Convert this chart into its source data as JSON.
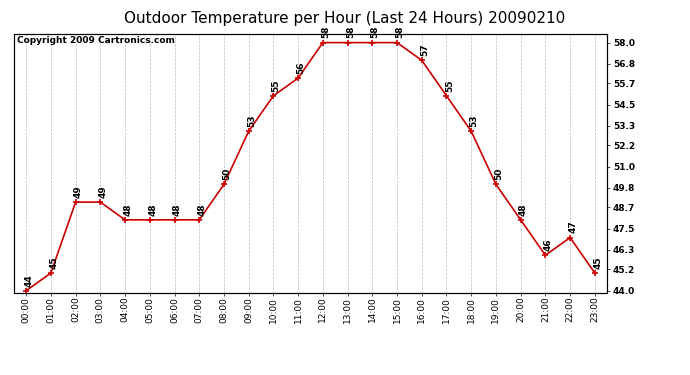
{
  "title": "Outdoor Temperature per Hour (Last 24 Hours) 20090210",
  "copyright": "Copyright 2009 Cartronics.com",
  "hours": [
    "00:00",
    "01:00",
    "02:00",
    "03:00",
    "04:00",
    "05:00",
    "06:00",
    "07:00",
    "08:00",
    "09:00",
    "10:00",
    "11:00",
    "12:00",
    "13:00",
    "14:00",
    "15:00",
    "16:00",
    "17:00",
    "18:00",
    "19:00",
    "20:00",
    "21:00",
    "22:00",
    "23:00"
  ],
  "temps": [
    44,
    45,
    49,
    49,
    48,
    48,
    48,
    48,
    50,
    53,
    55,
    56,
    58,
    58,
    58,
    58,
    57,
    55,
    53,
    50,
    48,
    46,
    47,
    45
  ],
  "ymin": 44.0,
  "ymax": 58.0,
  "yticks": [
    44.0,
    45.2,
    46.3,
    47.5,
    48.7,
    49.8,
    51.0,
    52.2,
    53.3,
    54.5,
    55.7,
    56.8,
    58.0
  ],
  "line_color": "#cc0000",
  "marker_color": "#cc0000",
  "bg_color": "#ffffff",
  "grid_color": "#bbbbbb",
  "title_fontsize": 11,
  "label_fontsize": 6.5,
  "annot_fontsize": 6.5,
  "copyright_fontsize": 6.5
}
